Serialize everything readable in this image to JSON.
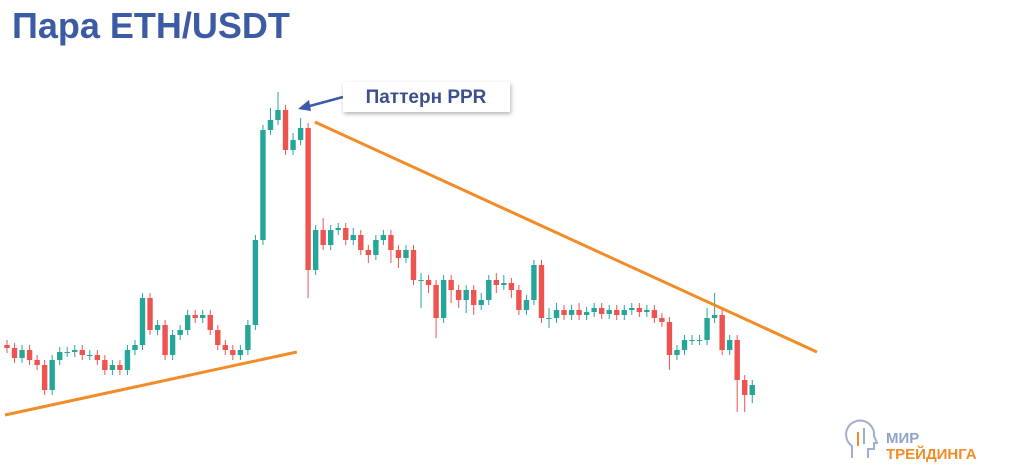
{
  "chart_data": {
    "type": "candlestick",
    "title": "Пара ETH/USDT",
    "annotation": "Паттерн PPR",
    "logo": [
      "МИР",
      "ТРЕЙДИНГА"
    ],
    "up_color": "#26a69a",
    "down_color": "#ef5350",
    "xlim": [
      -0.93,
      135.1
    ],
    "ylim": [
      0,
      473
    ],
    "open": [
      128,
      125,
      115,
      123,
      113,
      108,
      83,
      113,
      121,
      121,
      123,
      118,
      118,
      113,
      103,
      108,
      103,
      123,
      128,
      175,
      143,
      148,
      118,
      138,
      143,
      158,
      155,
      158,
      143,
      128,
      123,
      118,
      123,
      148,
      233,
      343,
      353,
      363,
      323,
      333,
      345,
      203,
      243,
      228,
      243,
      245,
      233,
      238,
      223,
      218,
      233,
      238,
      223,
      215,
      223,
      193,
      193,
      188,
      155,
      193,
      183,
      173,
      183,
      168,
      173,
      193,
      188,
      190,
      183,
      163,
      173,
      208,
      155,
      155,
      163,
      158,
      163,
      158,
      161,
      165,
      159,
      163,
      158,
      163,
      165,
      161,
      163,
      155,
      151,
      118,
      123,
      133,
      133,
      133,
      155,
      158,
      123,
      133,
      93,
      78
    ],
    "high": [
      133,
      130,
      128,
      128,
      118,
      113,
      118,
      126,
      126,
      128,
      128,
      123,
      123,
      118,
      113,
      113,
      128,
      133,
      180,
      180,
      153,
      153,
      143,
      148,
      163,
      163,
      163,
      163,
      148,
      133,
      128,
      128,
      153,
      238,
      348,
      365,
      381,
      368,
      340,
      355,
      350,
      248,
      255,
      248,
      250,
      250,
      245,
      243,
      228,
      238,
      243,
      243,
      228,
      228,
      228,
      200,
      198,
      193,
      198,
      198,
      188,
      188,
      188,
      180,
      198,
      200,
      198,
      195,
      188,
      178,
      213,
      213,
      165,
      170,
      168,
      168,
      170,
      166,
      170,
      170,
      168,
      168,
      168,
      170,
      170,
      168,
      168,
      160,
      156,
      128,
      138,
      138,
      138,
      165,
      180,
      165,
      138,
      138,
      98,
      93
    ],
    "low": [
      120,
      110,
      110,
      108,
      103,
      78,
      78,
      108,
      116,
      116,
      113,
      113,
      108,
      98,
      98,
      98,
      98,
      118,
      123,
      138,
      138,
      113,
      113,
      133,
      138,
      150,
      150,
      138,
      123,
      118,
      113,
      113,
      118,
      143,
      228,
      338,
      348,
      318,
      318,
      328,
      175,
      198,
      223,
      223,
      238,
      228,
      228,
      218,
      210,
      213,
      228,
      210,
      205,
      210,
      188,
      165,
      180,
      135,
      150,
      170,
      165,
      160,
      158,
      163,
      168,
      180,
      183,
      175,
      158,
      158,
      168,
      150,
      145,
      150,
      153,
      153,
      153,
      153,
      156,
      154,
      154,
      153,
      153,
      158,
      156,
      156,
      150,
      146,
      103,
      113,
      118,
      128,
      128,
      128,
      150,
      118,
      118,
      61,
      61,
      70
    ],
    "close": [
      125,
      115,
      123,
      113,
      108,
      83,
      113,
      121,
      121,
      123,
      118,
      118,
      113,
      103,
      108,
      103,
      123,
      128,
      175,
      143,
      148,
      118,
      138,
      143,
      158,
      155,
      158,
      143,
      128,
      123,
      118,
      123,
      148,
      233,
      343,
      353,
      363,
      323,
      333,
      345,
      203,
      243,
      228,
      243,
      245,
      233,
      238,
      223,
      218,
      233,
      238,
      223,
      215,
      223,
      193,
      193,
      188,
      155,
      193,
      183,
      173,
      183,
      168,
      173,
      193,
      188,
      190,
      183,
      163,
      173,
      208,
      155,
      155,
      163,
      158,
      163,
      158,
      161,
      165,
      159,
      163,
      158,
      163,
      165,
      161,
      163,
      155,
      151,
      118,
      123,
      133,
      133,
      133,
      155,
      158,
      123,
      133,
      93,
      78,
      88
    ],
    "trendlines": [
      {
        "color": "#f28c28",
        "x": [
          -0.27,
          38.5
        ],
        "y": [
          58,
          121
        ]
      },
      {
        "color": "#f28c28",
        "x": [
          40.9,
          107.6
        ],
        "y": [
          351,
          121
        ]
      }
    ]
  }
}
